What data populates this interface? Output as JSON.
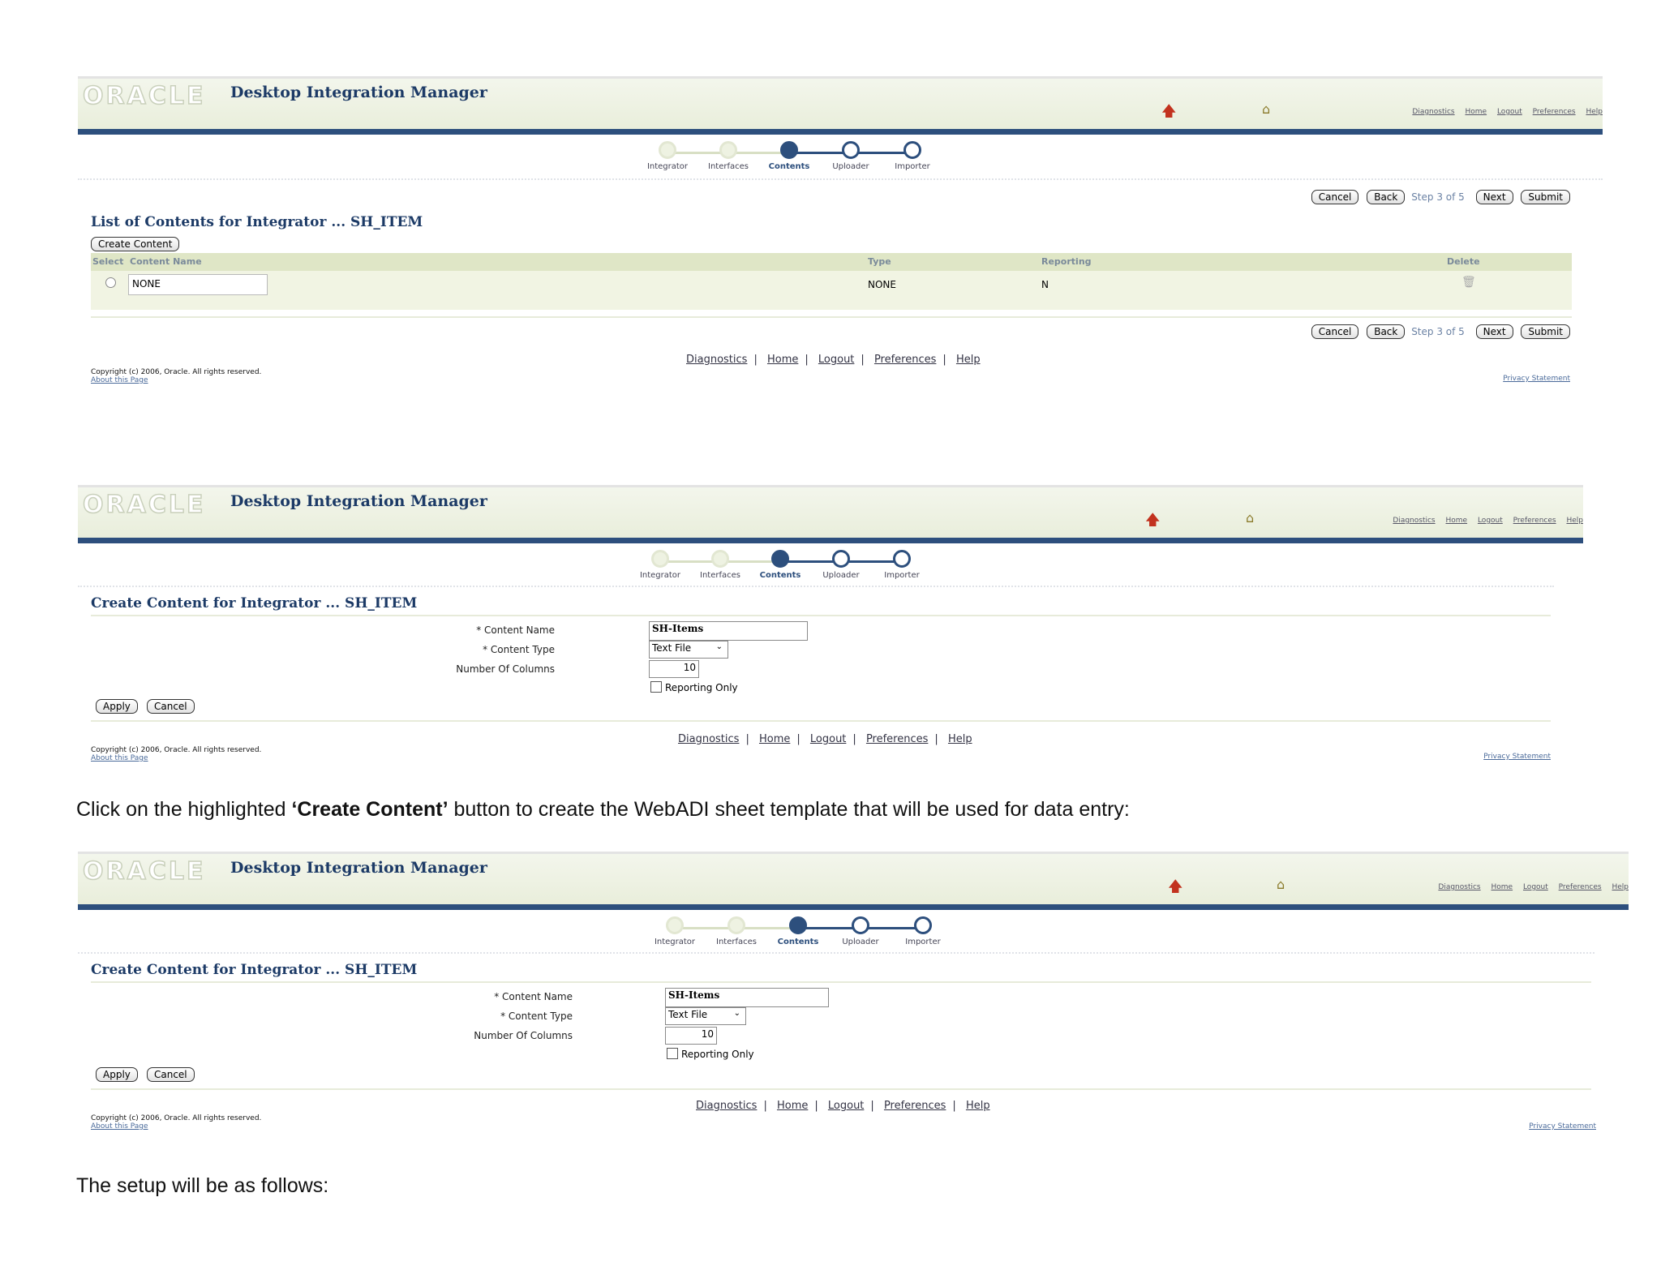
{
  "shot1": {
    "header": {
      "logo": "ORACLE",
      "app_title": "Desktop Integration Manager",
      "global_links": [
        "Diagnostics",
        "Home",
        "Logout",
        "Preferences",
        "Help"
      ]
    },
    "train": [
      "Integrator",
      "Interfaces",
      "Contents",
      "Uploader",
      "Importer"
    ],
    "train_current": "Contents",
    "nav": {
      "cancel": "Cancel",
      "back": "Back",
      "step": "Step 3 of 5",
      "next": "Next",
      "submit": "Submit"
    },
    "title": "List of Contents for Integrator ... SH_ITEM",
    "create_button": "Create Content",
    "table": {
      "columns": {
        "select": "Select",
        "name": "Content Name",
        "type": "Type",
        "reporting": "Reporting",
        "delete": "Delete"
      },
      "row": {
        "name": "NONE",
        "type": "NONE",
        "reporting": "N"
      }
    },
    "footer_links": [
      "Diagnostics",
      "Home",
      "Logout",
      "Preferences",
      "Help"
    ],
    "copyright": "Copyright (c) 2006, Oracle. All rights reserved.",
    "about": "About this Page",
    "privacy": "Privacy Statement"
  },
  "shot2": {
    "header": {
      "logo": "ORACLE",
      "app_title": "Desktop Integration Manager",
      "global_links": [
        "Diagnostics",
        "Home",
        "Logout",
        "Preferences",
        "Help"
      ]
    },
    "train": [
      "Integrator",
      "Interfaces",
      "Contents",
      "Uploader",
      "Importer"
    ],
    "title": "Create Content for Integrator ... SH_ITEM",
    "form": {
      "name_label": "* Content Name",
      "name_value": "SH-Items",
      "type_label": "* Content Type",
      "type_value": "Text File",
      "cols_label": "Number Of Columns",
      "cols_value": "10",
      "reporting_label": "Reporting Only"
    },
    "apply": "Apply",
    "cancel": "Cancel",
    "footer_links": [
      "Diagnostics",
      "Home",
      "Logout",
      "Preferences",
      "Help"
    ],
    "copyright": "Copyright (c) 2006, Oracle. All rights reserved.",
    "about": "About this Page",
    "privacy": "Privacy Statement"
  },
  "instruction": {
    "before": "Click on the highlighted ",
    "bold": "‘Create Content’",
    "after": " button to create the WebADI sheet template that will be used for data entry:"
  },
  "shot3": {
    "header": {
      "logo": "ORACLE",
      "app_title": "Desktop Integration Manager",
      "global_links": [
        "Diagnostics",
        "Home",
        "Logout",
        "Preferences",
        "Help"
      ]
    },
    "train": [
      "Integrator",
      "Interfaces",
      "Contents",
      "Uploader",
      "Importer"
    ],
    "title": "Create Content for Integrator ... SH_ITEM",
    "form": {
      "name_label": "* Content Name",
      "name_value": "SH-Items",
      "type_label": "* Content Type",
      "type_value": "Text File",
      "cols_label": "Number Of Columns",
      "cols_value": "10",
      "reporting_label": "Reporting Only"
    },
    "apply": "Apply",
    "cancel": "Cancel",
    "footer_links": [
      "Diagnostics",
      "Home",
      "Logout",
      "Preferences",
      "Help"
    ],
    "copyright": "Copyright (c) 2006, Oracle. All rights reserved.",
    "about": "About this Page",
    "privacy": "Privacy Statement"
  },
  "closing": "The setup will be as follows:"
}
